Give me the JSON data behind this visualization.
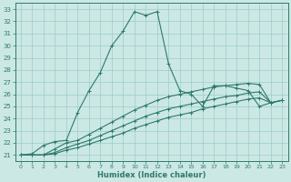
{
  "xlabel": "Humidex (Indice chaleur)",
  "background_color": "#cce8e4",
  "grid_color": "#99cccc",
  "line_color": "#2d7a6e",
  "xlim": [
    -0.5,
    23.5
  ],
  "ylim": [
    20.5,
    33.5
  ],
  "yticks": [
    21,
    22,
    23,
    24,
    25,
    26,
    27,
    28,
    29,
    30,
    31,
    32,
    33
  ],
  "xticks": [
    0,
    1,
    2,
    3,
    4,
    5,
    6,
    7,
    8,
    9,
    10,
    11,
    12,
    13,
    14,
    15,
    16,
    17,
    18,
    19,
    20,
    21,
    22,
    23
  ],
  "series": [
    [
      21.0,
      21.1,
      21.8,
      22.1,
      22.2,
      24.5,
      26.3,
      27.8,
      30.0,
      31.2,
      32.8,
      32.5,
      32.8,
      28.5,
      26.3,
      26.0,
      25.0,
      26.7,
      26.7,
      26.5,
      26.3,
      25.0,
      25.3,
      null
    ],
    [
      21.0,
      21.0,
      21.0,
      21.5,
      22.0,
      22.2,
      22.7,
      23.2,
      23.7,
      24.2,
      24.7,
      25.1,
      25.5,
      25.8,
      26.0,
      26.2,
      26.4,
      26.6,
      26.7,
      26.8,
      26.9,
      26.8,
      25.3,
      25.5
    ],
    [
      21.0,
      21.0,
      21.0,
      21.2,
      21.6,
      21.9,
      22.2,
      22.6,
      23.0,
      23.4,
      23.8,
      24.2,
      24.5,
      24.8,
      25.0,
      25.2,
      25.4,
      25.6,
      25.8,
      25.9,
      26.1,
      26.2,
      25.3,
      25.5
    ],
    [
      21.0,
      21.0,
      21.0,
      21.1,
      21.4,
      21.6,
      21.9,
      22.2,
      22.5,
      22.8,
      23.2,
      23.5,
      23.8,
      24.1,
      24.3,
      24.5,
      24.8,
      25.0,
      25.2,
      25.4,
      25.6,
      25.7,
      25.3,
      25.5
    ]
  ],
  "x_values": [
    0,
    1,
    2,
    3,
    4,
    5,
    6,
    7,
    8,
    9,
    10,
    11,
    12,
    13,
    14,
    15,
    16,
    17,
    18,
    19,
    20,
    21,
    22,
    23
  ],
  "marker": "+",
  "linewidth": 0.8,
  "markersize": 3.0
}
